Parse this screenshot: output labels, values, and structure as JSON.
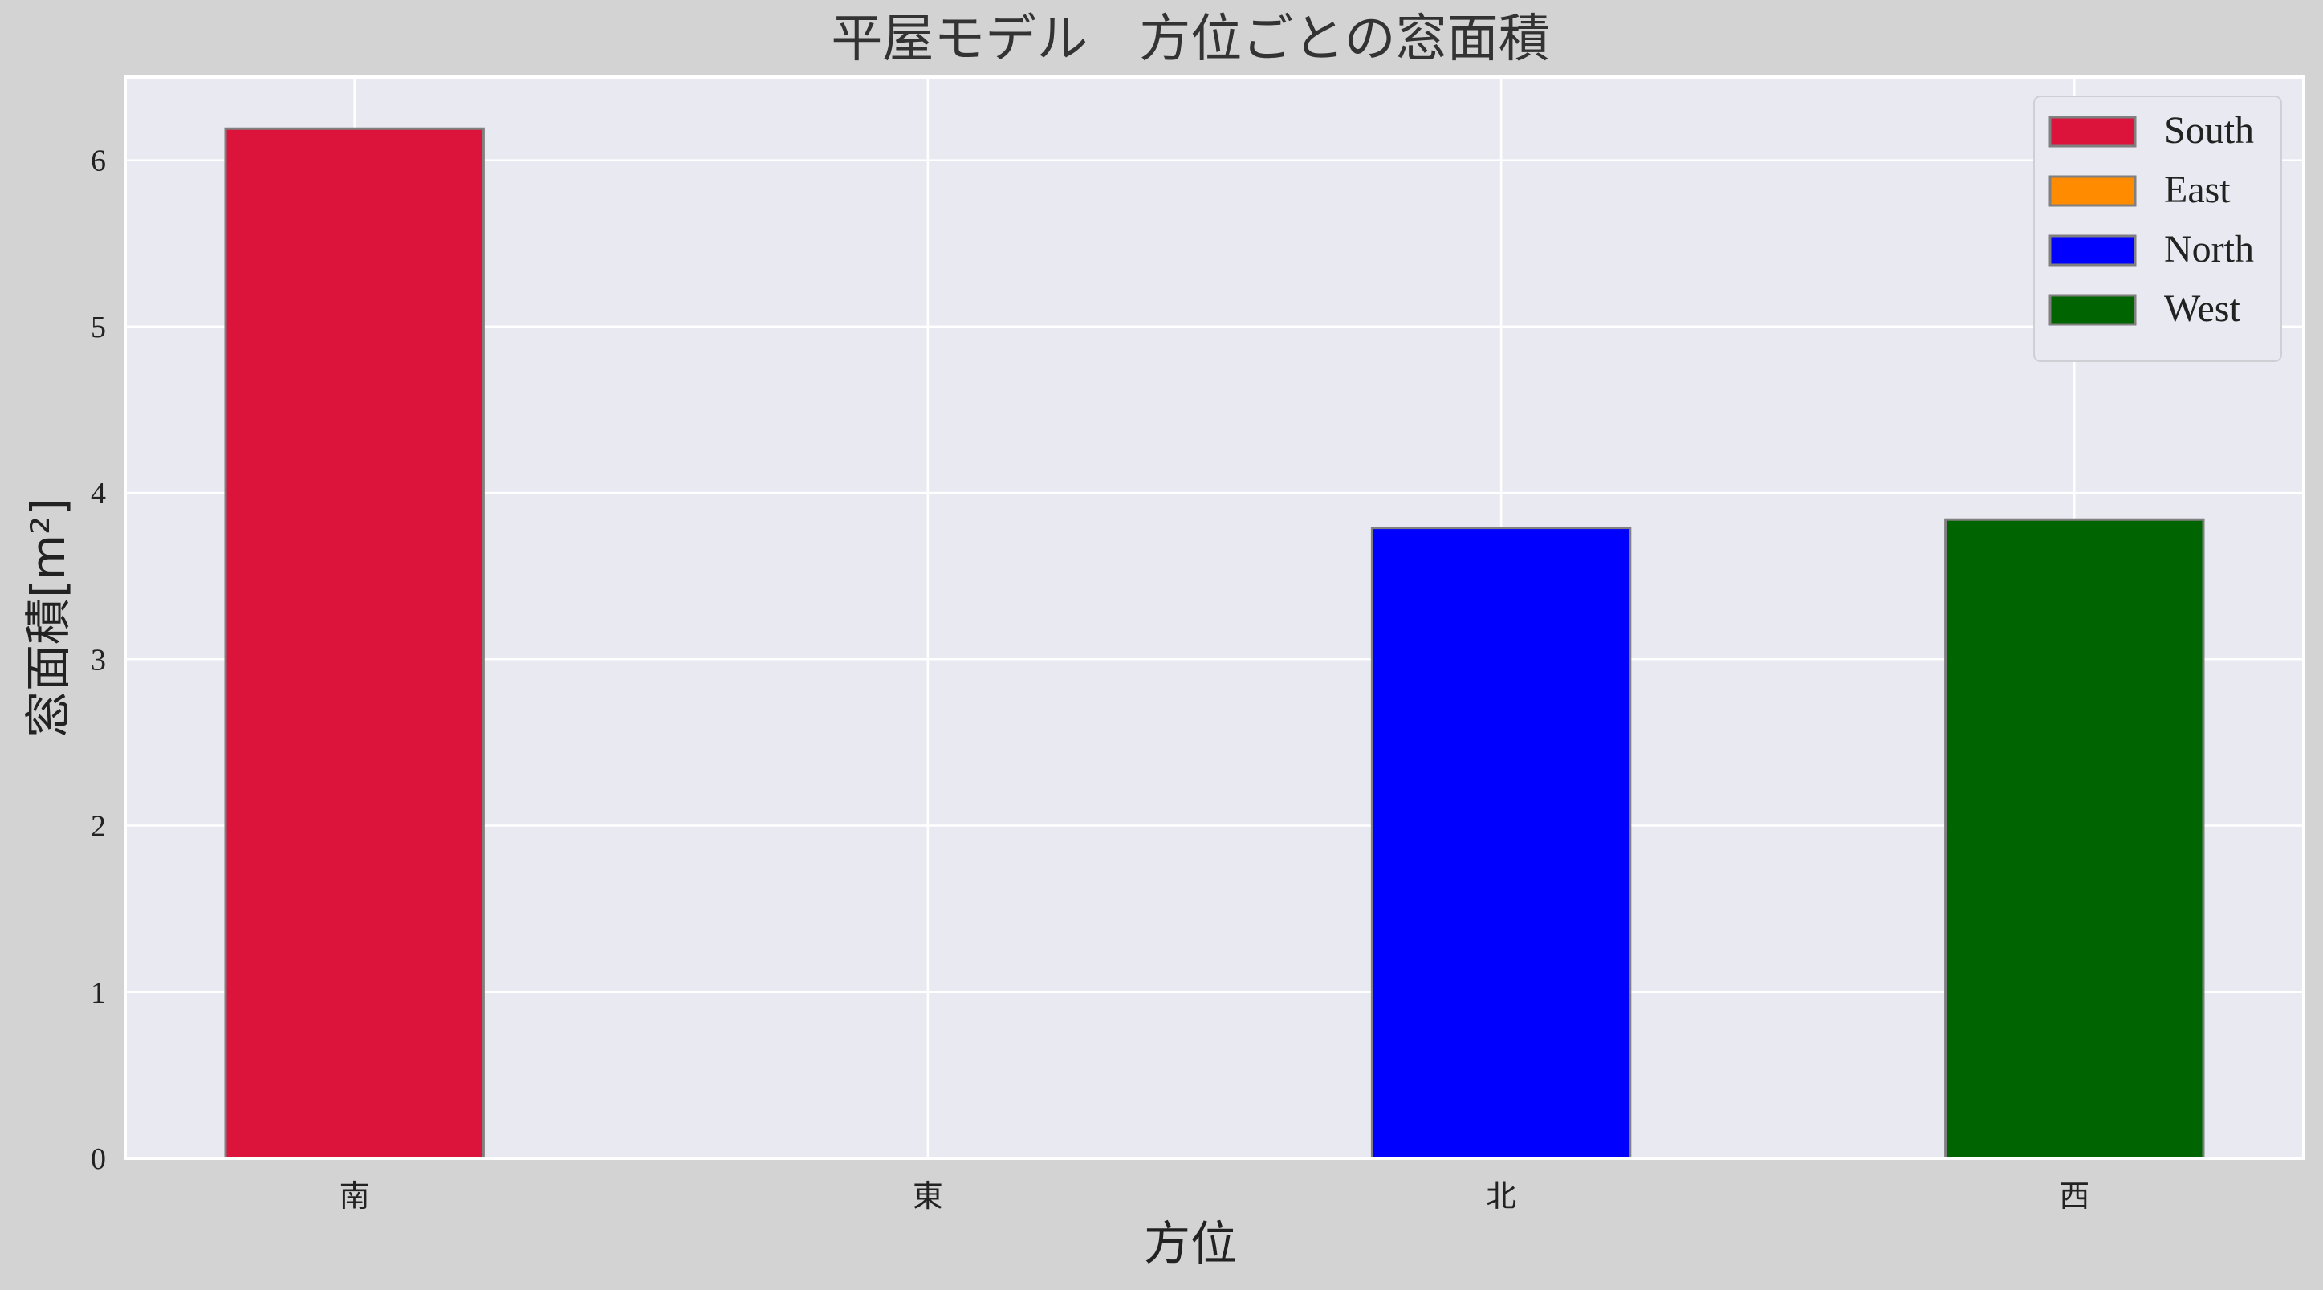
{
  "figure": {
    "background": "#d3d3d3",
    "plot_background": "#e9e9f1",
    "grid_color": "#ffffff"
  },
  "chart_data": {
    "type": "bar",
    "title": "平屋モデル　方位ごとの窓面積",
    "xlabel": "方位",
    "ylabel": "窓面積[m²]",
    "categories": [
      "南",
      "東",
      "北",
      "西"
    ],
    "values": [
      6.19,
      0,
      3.79,
      3.84
    ],
    "colors": [
      "#dc143c",
      "#ff8c00",
      "#0000ff",
      "#006400"
    ],
    "bar_edge_color": "#808080",
    "ylim": [
      0,
      6.5
    ],
    "yticks": [
      0,
      1,
      2,
      3,
      4,
      5,
      6
    ],
    "grid": true,
    "legend": {
      "placement": "top-right",
      "entries": [
        {
          "label": "South",
          "color": "#dc143c"
        },
        {
          "label": "East",
          "color": "#ff8c00"
        },
        {
          "label": "North",
          "color": "#0000ff"
        },
        {
          "label": "West",
          "color": "#006400"
        }
      ]
    }
  }
}
